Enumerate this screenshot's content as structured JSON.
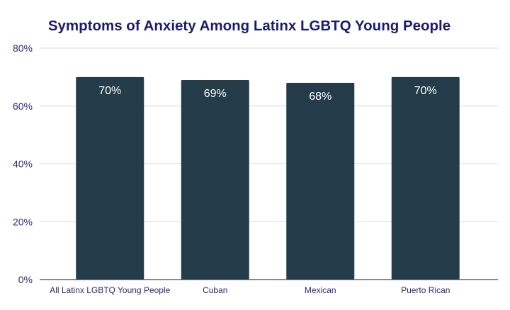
{
  "chart_data": {
    "type": "bar",
    "title": "Symptoms of Anxiety Among Latinx LGBTQ Young People",
    "xlabel": "",
    "ylabel": "",
    "categories": [
      "All Latinx LGBTQ Young People",
      "Cuban",
      "Mexican",
      "Puerto Rican"
    ],
    "values": [
      70,
      69,
      68,
      70
    ],
    "data_labels": [
      "70%",
      "69%",
      "68%",
      "70%"
    ],
    "ylim": [
      0,
      80
    ],
    "yticks": [
      0,
      20,
      40,
      60,
      80
    ],
    "ytick_labels": [
      "0%",
      "20%",
      "40%",
      "60%",
      "80%"
    ],
    "grid": true,
    "legend": "none",
    "colors": {
      "bar": "#243b4a",
      "title": "#1c1c6b",
      "axis_text": "#2b2b6b",
      "grid": "#d9d9d9",
      "baseline": "#888888",
      "data_label": "#ffffff"
    }
  }
}
